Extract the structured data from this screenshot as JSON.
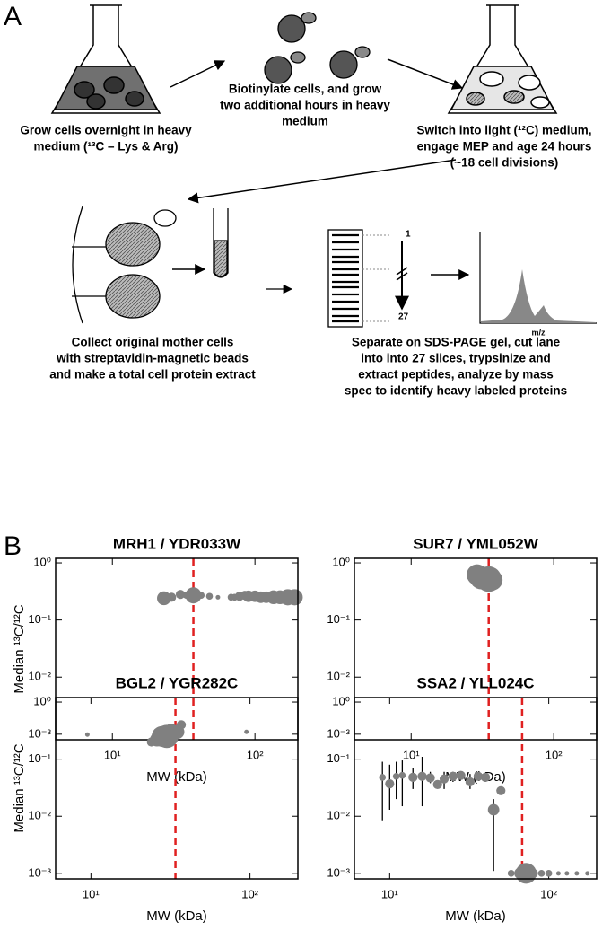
{
  "panel_labels": [
    "A",
    "B"
  ],
  "workflow": {
    "steps": [
      {
        "lines": [
          "Grow cells overnight in heavy",
          "medium (¹³C – Lys & Arg)"
        ]
      },
      {
        "lines": [
          "Biotinylate cells, and grow",
          "two additional hours in heavy",
          "medium"
        ]
      },
      {
        "lines": [
          "Switch into light (¹²C) medium,",
          "engage MEP and age 24 hours",
          "(~18 cell divisions)"
        ]
      },
      {
        "lines": [
          "Collect original mother cells",
          "with streptavidin-magnetic beads",
          "and make a total cell protein extract"
        ]
      },
      {
        "lines": [
          "Separate on SDS-PAGE gel, cut lane",
          "into into 27 slices, trypsinize and",
          "extract peptides, analyze by mass",
          "spec to identify heavy labeled proteins"
        ]
      }
    ],
    "slice_first": "1",
    "slice_last": "27",
    "spectrum_axis": "m/z"
  },
  "chart_data": [
    {
      "type": "scatter",
      "title": "MRH1 / YDR033W",
      "xlabel": "MW (kDa)",
      "ylabel": "Median ¹³C/¹²C",
      "xscale": "log",
      "yscale": "log",
      "xlim": [
        4,
        200
      ],
      "ylim": [
        0.0008,
        1.2
      ],
      "xticks": [
        {
          "value": 10,
          "label": "10¹"
        },
        {
          "value": 100,
          "label": "10²"
        }
      ],
      "yticks": [
        {
          "value": 0.001,
          "label": "10⁻³"
        },
        {
          "value": 0.01,
          "label": "10⁻²"
        },
        {
          "value": 0.1,
          "label": "10⁻¹"
        },
        {
          "value": 1,
          "label": "10⁰"
        }
      ],
      "color": "#808080",
      "reference_x": 37,
      "reference_color": "#e02020",
      "x": [
        23,
        26,
        30,
        33,
        37,
        42,
        48,
        55,
        68,
        72,
        78,
        85,
        90,
        100,
        110,
        120,
        135,
        150,
        170,
        190
      ],
      "values": [
        0.24,
        0.25,
        0.28,
        0.27,
        0.27,
        0.27,
        0.26,
        0.25,
        0.25,
        0.25,
        0.26,
        0.27,
        0.26,
        0.26,
        0.25,
        0.25,
        0.25,
        0.25,
        0.25,
        0.25
      ],
      "sizes": [
        5,
        3,
        3,
        2,
        6,
        2,
        2,
        1,
        2,
        2,
        3,
        3,
        4,
        4,
        4,
        4,
        5,
        5,
        6,
        6
      ]
    },
    {
      "type": "scatter",
      "title": "SUR7 / YML052W",
      "xlabel": "MW (kDa)",
      "xscale": "log",
      "yscale": "log",
      "xlim": [
        4,
        200
      ],
      "ylim": [
        0.0008,
        1.2
      ],
      "xticks": [
        {
          "value": 10,
          "label": "10¹"
        },
        {
          "value": 100,
          "label": "10²"
        }
      ],
      "yticks": [
        {
          "value": 0.001,
          "label": "10⁻³"
        },
        {
          "value": 0.01,
          "label": "10⁻²"
        },
        {
          "value": 0.1,
          "label": "10⁻¹"
        },
        {
          "value": 1,
          "label": "10⁰"
        }
      ],
      "color": "#808080",
      "reference_x": 35,
      "reference_color": "#e02020",
      "x": [
        29,
        31,
        33,
        35,
        37
      ],
      "values": [
        0.62,
        0.55,
        0.58,
        0.52,
        0.5
      ],
      "sizes": [
        8,
        9,
        7,
        10,
        8
      ]
    },
    {
      "type": "scatter",
      "title": "BGL2 / YGR282C",
      "xlabel": "MW (kDa)",
      "ylabel": "Median ¹³C/¹²C",
      "xscale": "log",
      "yscale": "log",
      "xlim": [
        6,
        200
      ],
      "ylim": [
        0.0008,
        1.2
      ],
      "xticks": [
        {
          "value": 10,
          "label": "10¹"
        },
        {
          "value": 100,
          "label": "10²"
        }
      ],
      "yticks": [
        {
          "value": 0.001,
          "label": "10⁻³"
        },
        {
          "value": 0.01,
          "label": "10⁻²"
        },
        {
          "value": 0.1,
          "label": "10⁻¹"
        },
        {
          "value": 1,
          "label": "10⁰"
        }
      ],
      "color": "#808080",
      "reference_x": 34,
      "reference_color": "#e02020",
      "x": [
        9.5,
        24,
        26,
        28,
        30,
        32,
        35,
        37,
        95
      ],
      "values": [
        0.27,
        0.2,
        0.22,
        0.25,
        0.25,
        0.3,
        0.3,
        0.4,
        0.3
      ],
      "sizes": [
        1,
        3,
        5,
        8,
        9,
        6,
        5,
        3,
        1
      ]
    },
    {
      "type": "scatter",
      "title": "SSA2 / YLL024C",
      "xlabel": "MW (kDa)",
      "xscale": "log",
      "yscale": "log",
      "xlim": [
        6,
        200
      ],
      "ylim": [
        0.0008,
        1.2
      ],
      "xticks": [
        {
          "value": 10,
          "label": "10¹"
        },
        {
          "value": 100,
          "label": "10²"
        }
      ],
      "yticks": [
        {
          "value": 0.001,
          "label": "10⁻³"
        },
        {
          "value": 0.01,
          "label": "10⁻²"
        },
        {
          "value": 0.1,
          "label": "10⁻¹"
        },
        {
          "value": 1,
          "label": "10⁰"
        }
      ],
      "color": "#808080",
      "reference_x": 68,
      "reference_color": "#e02020",
      "x": [
        9,
        10,
        11,
        12,
        14,
        16,
        18,
        20,
        22,
        25,
        28,
        32,
        36,
        40,
        45,
        50,
        58,
        66,
        72,
        80,
        90,
        100,
        115,
        130,
        150,
        175
      ],
      "values": [
        0.048,
        0.037,
        0.05,
        0.052,
        0.048,
        0.05,
        0.047,
        0.036,
        0.045,
        0.05,
        0.052,
        0.04,
        0.05,
        0.048,
        0.013,
        0.028,
        0.001,
        0.001,
        0.001,
        0.001,
        0.001,
        0.001,
        0.001,
        0.001,
        0.001,
        0.001
      ],
      "sizes": [
        2,
        3,
        2,
        2,
        3,
        3,
        3,
        3,
        3,
        3,
        3,
        3,
        3,
        3,
        4,
        3,
        2,
        4,
        8,
        3,
        2,
        2,
        1,
        1,
        1,
        1
      ],
      "y_low": [
        0.0085,
        0.013,
        0.02,
        0.015,
        0.03,
        0.015,
        0.038,
        null,
        0.03,
        0.04,
        null,
        0.03,
        null,
        0.04,
        0.0011,
        null,
        null,
        null,
        null,
        null,
        null,
        null,
        null,
        null,
        null,
        null
      ],
      "y_high": [
        0.09,
        0.08,
        0.09,
        0.095,
        0.07,
        0.11,
        0.06,
        null,
        0.06,
        0.06,
        null,
        0.055,
        null,
        0.055,
        0.02,
        null,
        null,
        null,
        null,
        null,
        null,
        null,
        null,
        null,
        null,
        null
      ]
    }
  ]
}
